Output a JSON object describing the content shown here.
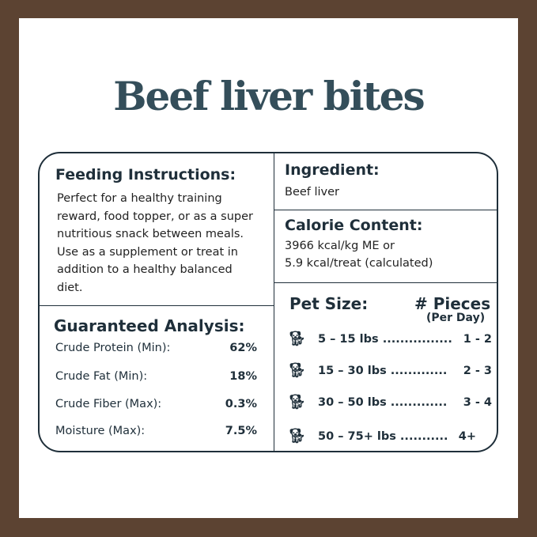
{
  "title": "Beef liver bites",
  "feeding": {
    "heading": "Feeding Instructions:",
    "text": "Perfect for a healthy training reward, food topper, or as a super nutritious snack between meals. Use as a supplement or treat in addition to a healthy balanced diet."
  },
  "ingredient": {
    "heading": "Ingredient:",
    "text": "Beef liver"
  },
  "calorie": {
    "heading": "Calorie Content:",
    "line1": "3966 kcal/kg ME or",
    "line2": "5.9 kcal/treat (calculated)"
  },
  "analysis": {
    "heading": "Guaranteed Analysis:",
    "items": [
      {
        "label": "Crude Protein (Min):",
        "value": "62%"
      },
      {
        "label": "Crude Fat (Min):",
        "value": "18%"
      },
      {
        "label": "Crude Fiber (Max):",
        "value": "0.3%"
      },
      {
        "label": "Moisture (Max):",
        "value": "7.5%"
      }
    ]
  },
  "pets": {
    "heading": "Pet Size:",
    "pieces_heading": "# Pieces",
    "pieces_sub": "(Per Day)",
    "icon": "sitting-dog-icon",
    "rows": [
      {
        "size": "5 – 15 lbs ................",
        "pieces": "1 - 2"
      },
      {
        "size": "15 – 30 lbs .............",
        "pieces": "2 - 3"
      },
      {
        "size": "30 – 50 lbs .............",
        "pieces": "3 - 4"
      },
      {
        "size": "50 – 75+ lbs ...........",
        "pieces": "4+"
      }
    ]
  },
  "colors": {
    "frame": "#5c4332",
    "title": "#344e5a",
    "text": "#1f2f3a"
  }
}
